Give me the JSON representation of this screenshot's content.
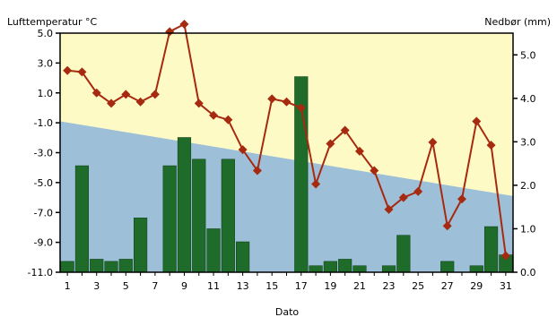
{
  "chart_data": {
    "type": "bar+line",
    "title": "",
    "xlabel": "Dato",
    "ylabel_left": "Lufttemperatur °C",
    "ylabel_right": "Nedbør (mm)",
    "x": [
      1,
      2,
      3,
      4,
      5,
      6,
      7,
      8,
      9,
      10,
      11,
      12,
      13,
      14,
      15,
      16,
      17,
      18,
      19,
      20,
      21,
      22,
      23,
      24,
      25,
      26,
      27,
      28,
      29,
      30,
      31
    ],
    "x_tick_labels": [
      "1",
      "3",
      "5",
      "7",
      "9",
      "11",
      "13",
      "15",
      "17",
      "19",
      "21",
      "23",
      "25",
      "27",
      "29",
      "31"
    ],
    "left_axis": {
      "ylim": [
        -11.0,
        5.0
      ],
      "ticks": [
        "5.0",
        "3.0",
        "1.0",
        "-1.0",
        "-3.0",
        "-5.0",
        "-7.0",
        "-9.0",
        "-11.0"
      ]
    },
    "right_axis": {
      "ylim": [
        0.0,
        5.5
      ],
      "ticks": [
        "5.0",
        "4.0",
        "3.0",
        "2.0",
        "1.0",
        "0.0"
      ]
    },
    "normal_temperature_band": {
      "start": -0.9,
      "end": -5.9,
      "color": "#9dbfd8"
    },
    "background_color": "#fefac6",
    "series": [
      {
        "kind": "line",
        "axis": "left",
        "color": "#a52a0f",
        "values": [
          2.5,
          2.4,
          1.0,
          0.3,
          0.9,
          0.4,
          0.9,
          5.1,
          5.6,
          0.3,
          -0.5,
          -0.8,
          -2.8,
          -4.2,
          0.6,
          0.4,
          0.0,
          -5.1,
          -2.4,
          -1.5,
          -2.9,
          -4.2,
          -6.8,
          -6.0,
          -5.6,
          -2.3,
          -7.9,
          -6.1,
          -0.9,
          -2.5,
          -9.9
        ]
      },
      {
        "kind": "bar",
        "axis": "right",
        "color": "#1e6b2a",
        "values": [
          0.25,
          2.45,
          0.3,
          0.25,
          0.3,
          1.25,
          0.0,
          2.45,
          3.1,
          2.6,
          1.0,
          2.6,
          0.7,
          0.0,
          0.0,
          0.0,
          4.5,
          0.15,
          0.25,
          0.3,
          0.15,
          0.0,
          0.15,
          0.85,
          0.0,
          0.0,
          0.25,
          0.0,
          0.15,
          1.05,
          0.4
        ]
      }
    ]
  }
}
